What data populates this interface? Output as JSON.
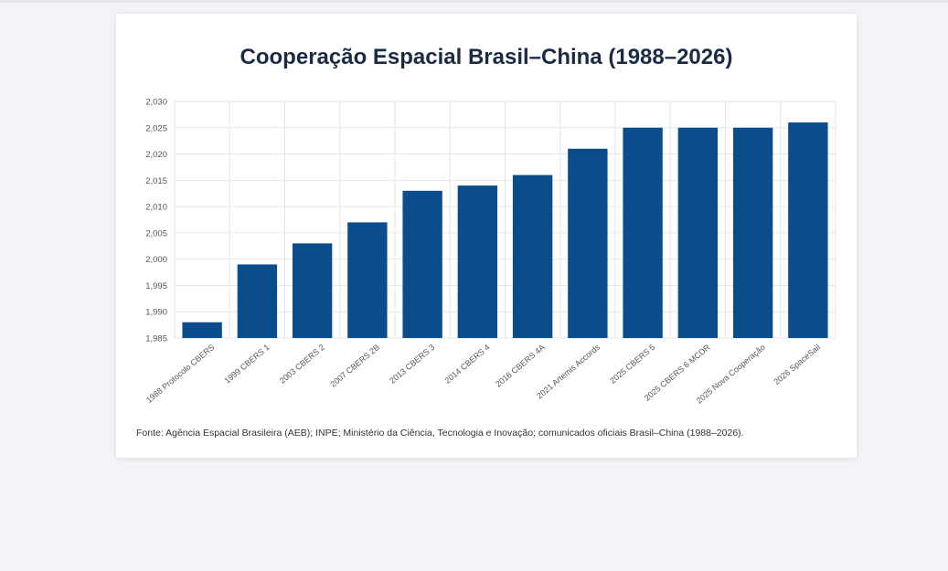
{
  "title": "Cooperação Espacial Brasil–China (1988–2026)",
  "source": "Fonte: Agência Espacial Brasileira (AEB); INPE; Ministério da Ciência, Tecnologia e Inovação; comunicados oficiais Brasil–China (1988–2026).",
  "colors": {
    "bar": "#0b4d8a",
    "grid": "#e6e6e6",
    "axis_text": "#555555",
    "title": "#1c2b45"
  },
  "chart_data": {
    "type": "bar",
    "title": "Cooperação Espacial Brasil–China (1988–2026)",
    "xlabel": "",
    "ylabel": "",
    "ylim": [
      1985,
      2030
    ],
    "yticks": [
      1985,
      1990,
      1995,
      2000,
      2005,
      2010,
      2015,
      2020,
      2025,
      2030
    ],
    "ytick_labels": [
      "1,985",
      "1,990",
      "1,995",
      "2,000",
      "2,005",
      "2,010",
      "2,015",
      "2,020",
      "2,025",
      "2,030"
    ],
    "grid": true,
    "legend": "none",
    "categories": [
      "1988 Protocolo CBERS",
      "1999 CBERS 1",
      "2003 CBERS 2",
      "2007 CBERS 2B",
      "2013 CBERS 3",
      "2014 CBERS 4",
      "2016 CBERS 4A",
      "2021 Artemis Accords",
      "2025 CBERS 5",
      "2025 CBERS 6 MCDR",
      "2025 Nova Cooperação",
      "2026 SpaceSail"
    ],
    "values": [
      1988,
      1999,
      2003,
      2007,
      2013,
      2014,
      2016,
      2021,
      2025,
      2025,
      2025,
      2026
    ]
  }
}
